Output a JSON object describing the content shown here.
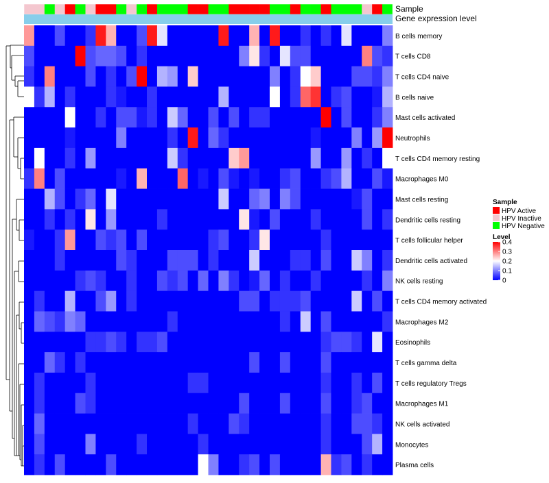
{
  "chart_data": {
    "type": "heatmap",
    "annotation_labels": [
      "Sample",
      "Gene expression level"
    ],
    "sample_groups": [
      "HPV Active",
      "HPV Inactive",
      "HPV Negative"
    ],
    "sample_colors": {
      "HPV Active": "#FF0000",
      "HPV Inactive": "#F4C7CF",
      "HPV Negative": "#00FF00"
    },
    "column_samples": [
      "HPV Inactive",
      "HPV Inactive",
      "HPV Negative",
      "HPV Inactive",
      "HPV Active",
      "HPV Negative",
      "HPV Inactive",
      "HPV Active",
      "HPV Active",
      "HPV Negative",
      "HPV Inactive",
      "HPV Negative",
      "HPV Active",
      "HPV Negative",
      "HPV Negative",
      "HPV Negative",
      "HPV Active",
      "HPV Active",
      "HPV Negative",
      "HPV Negative",
      "HPV Active",
      "HPV Active",
      "HPV Active",
      "HPV Active",
      "HPV Negative",
      "HPV Negative",
      "HPV Active",
      "HPV Negative",
      "HPV Negative",
      "HPV Active",
      "HPV Negative",
      "HPV Negative",
      "HPV Negative",
      "HPV Inactive",
      "HPV Active",
      "HPV Negative"
    ],
    "expression_bar_color": "#87CEEB",
    "rows": [
      "B cells memory",
      "T cells CD8",
      "T cells CD4 naive",
      "B cells naive",
      "Mast cells activated",
      "Neutrophils",
      "T cells CD4 memory resting",
      "Macrophages M0",
      "Mast cells resting",
      "Dendritic cells resting",
      "T cells follicular helper",
      "Dendritic cells activated",
      "NK cells resting",
      "T cells CD4 memory activated",
      "Macrophages M2",
      "Eosinophils",
      "T cells gamma delta",
      "T cells regulatory  Tregs",
      "Macrophages M1",
      "NK cells activated",
      "Monocytes",
      "Plasma cells"
    ],
    "values": [
      [
        0.28,
        0,
        0,
        0.06,
        0,
        0,
        0.04,
        0.38,
        0.26,
        0,
        0,
        0.06,
        0.38,
        0.18,
        0,
        0,
        0,
        0,
        0,
        0.38,
        0,
        0,
        0.26,
        0,
        0.38,
        0,
        0,
        0.04,
        0,
        0.04,
        0,
        0.18,
        0,
        0,
        0,
        0.1
      ],
      [
        0.06,
        0,
        0,
        0,
        0,
        0.4,
        0.06,
        0.08,
        0.08,
        0.06,
        0,
        0.04,
        0,
        0,
        0,
        0,
        0,
        0,
        0,
        0,
        0,
        0.1,
        0.22,
        0.04,
        0,
        0.18,
        0.06,
        0.06,
        0,
        0,
        0,
        0,
        0,
        0.3,
        0.06,
        0.04
      ],
      [
        0.04,
        0,
        0.3,
        0,
        0,
        0,
        0.06,
        0,
        0.04,
        0,
        0.06,
        0.4,
        0,
        0.14,
        0.12,
        0,
        0.24,
        0,
        0,
        0,
        0,
        0,
        0,
        0,
        0.1,
        0,
        0.04,
        0.2,
        0.24,
        0,
        0,
        0,
        0.06,
        0.06,
        0.04,
        0.1
      ],
      [
        0.2,
        0.04,
        0.14,
        0,
        0.04,
        0,
        0,
        0,
        0.04,
        0.02,
        0,
        0,
        0.04,
        0,
        0,
        0,
        0,
        0,
        0,
        0.14,
        0,
        0,
        0,
        0,
        0.2,
        0,
        0.04,
        0.32,
        0.36,
        0,
        0.04,
        0.06,
        0,
        0,
        0.02,
        0.14
      ],
      [
        0,
        0,
        0,
        0,
        0.2,
        0,
        0,
        0.04,
        0,
        0.06,
        0.06,
        0.02,
        0.04,
        0,
        0.16,
        0.08,
        0,
        0,
        0.06,
        0,
        0.06,
        0,
        0.04,
        0.04,
        0,
        0,
        0,
        0,
        0,
        0.4,
        0,
        0.06,
        0,
        0,
        0.04,
        0.1
      ],
      [
        0,
        0,
        0,
        0,
        0.02,
        0,
        0,
        0,
        0,
        0.1,
        0,
        0,
        0,
        0,
        0.04,
        0,
        0.38,
        0,
        0.08,
        0.04,
        0,
        0,
        0,
        0,
        0,
        0,
        0,
        0,
        0.02,
        0,
        0,
        0,
        0.1,
        0,
        0.12,
        0.4
      ],
      [
        0,
        0.2,
        0,
        0,
        0.04,
        0,
        0.12,
        0,
        0,
        0,
        0,
        0,
        0,
        0,
        0.16,
        0.04,
        0,
        0,
        0,
        0,
        0.24,
        0.28,
        0,
        0,
        0,
        0,
        0,
        0,
        0.12,
        0,
        0,
        0.12,
        0,
        0.04,
        0,
        0.2
      ],
      [
        0.04,
        0.3,
        0,
        0.06,
        0,
        0,
        0,
        0,
        0,
        0.02,
        0,
        0.26,
        0,
        0,
        0,
        0.32,
        0,
        0.02,
        0,
        0.06,
        0.02,
        0,
        0.02,
        0,
        0,
        0.04,
        0.06,
        0,
        0,
        0.04,
        0.06,
        0.14,
        0,
        0,
        0.06,
        0.02
      ],
      [
        0,
        0,
        0.14,
        0.06,
        0,
        0.04,
        0.08,
        0,
        0.18,
        0,
        0,
        0,
        0,
        0,
        0,
        0,
        0,
        0,
        0,
        0.16,
        0,
        0,
        0.08,
        0.1,
        0,
        0.1,
        0.06,
        0,
        0,
        0,
        0,
        0,
        0.02,
        0.06,
        0,
        0
      ],
      [
        0,
        0,
        0.04,
        0,
        0.04,
        0,
        0.22,
        0,
        0.12,
        0,
        0,
        0,
        0,
        0.04,
        0,
        0,
        0,
        0,
        0,
        0,
        0,
        0.22,
        0.02,
        0,
        0.06,
        0,
        0,
        0,
        0.04,
        0,
        0,
        0,
        0,
        0.06,
        0,
        0.04
      ],
      [
        0.02,
        0,
        0,
        0.04,
        0.28,
        0,
        0,
        0.06,
        0.04,
        0.06,
        0,
        0.06,
        0,
        0,
        0,
        0,
        0,
        0,
        0.04,
        0.06,
        0,
        0,
        0.04,
        0.22,
        0,
        0,
        0,
        0,
        0,
        0.04,
        0,
        0,
        0,
        0,
        0,
        0
      ],
      [
        0,
        0,
        0,
        0.04,
        0,
        0,
        0,
        0,
        0,
        0.06,
        0.04,
        0,
        0,
        0,
        0.06,
        0.06,
        0.06,
        0,
        0.04,
        0,
        0,
        0,
        0.16,
        0,
        0,
        0,
        0.04,
        0.04,
        0,
        0.06,
        0,
        0,
        0.16,
        0.1,
        0,
        0.04
      ],
      [
        0,
        0,
        0,
        0,
        0,
        0.04,
        0.06,
        0.04,
        0,
        0,
        0.04,
        0,
        0,
        0.06,
        0.04,
        0.06,
        0,
        0.08,
        0,
        0.1,
        0.04,
        0,
        0.02,
        0.08,
        0,
        0.04,
        0,
        0,
        0.04,
        0,
        0,
        0,
        0,
        0.04,
        0,
        0.1
      ],
      [
        0,
        0.04,
        0,
        0,
        0.14,
        0,
        0,
        0.06,
        0.12,
        0,
        0.04,
        0,
        0,
        0,
        0,
        0,
        0,
        0,
        0,
        0,
        0,
        0.06,
        0.06,
        0,
        0.04,
        0.04,
        0.04,
        0.06,
        0,
        0,
        0,
        0,
        0.16,
        0,
        0.06,
        0
      ],
      [
        0,
        0.08,
        0.06,
        0.04,
        0.1,
        0.08,
        0,
        0,
        0,
        0,
        0,
        0,
        0,
        0,
        0.04,
        0,
        0,
        0,
        0,
        0,
        0,
        0,
        0,
        0,
        0,
        0.04,
        0,
        0.16,
        0,
        0.06,
        0,
        0,
        0,
        0,
        0,
        0.04
      ],
      [
        0,
        0,
        0,
        0,
        0,
        0,
        0.04,
        0.04,
        0.06,
        0.04,
        0,
        0.04,
        0.04,
        0.06,
        0,
        0,
        0,
        0,
        0,
        0,
        0,
        0,
        0,
        0,
        0,
        0,
        0,
        0,
        0,
        0.04,
        0.06,
        0.06,
        0.04,
        0,
        0.18,
        0
      ],
      [
        0,
        0,
        0.08,
        0.04,
        0,
        0.04,
        0,
        0,
        0,
        0,
        0,
        0,
        0,
        0,
        0,
        0,
        0,
        0,
        0,
        0,
        0,
        0,
        0.06,
        0,
        0,
        0.06,
        0,
        0,
        0,
        0.06,
        0,
        0,
        0,
        0,
        0,
        0
      ],
      [
        0,
        0.04,
        0,
        0,
        0,
        0,
        0.04,
        0,
        0,
        0,
        0,
        0,
        0,
        0,
        0,
        0,
        0.04,
        0.04,
        0,
        0,
        0,
        0,
        0,
        0,
        0,
        0,
        0,
        0,
        0,
        0.04,
        0,
        0,
        0.04,
        0,
        0.06,
        0
      ],
      [
        0,
        0.04,
        0,
        0,
        0,
        0.06,
        0.04,
        0,
        0,
        0,
        0,
        0,
        0,
        0,
        0,
        0,
        0,
        0,
        0,
        0,
        0,
        0.06,
        0,
        0,
        0,
        0.06,
        0,
        0,
        0,
        0.06,
        0,
        0,
        0.04,
        0.06,
        0,
        0
      ],
      [
        0,
        0.08,
        0,
        0,
        0,
        0,
        0,
        0,
        0,
        0,
        0,
        0,
        0,
        0,
        0,
        0,
        0.04,
        0,
        0,
        0,
        0.06,
        0.04,
        0,
        0,
        0,
        0,
        0,
        0,
        0,
        0.04,
        0,
        0,
        0.06,
        0.06,
        0.04,
        0
      ],
      [
        0,
        0.06,
        0,
        0,
        0,
        0,
        0.1,
        0,
        0,
        0,
        0,
        0.04,
        0,
        0,
        0,
        0,
        0,
        0.04,
        0,
        0,
        0,
        0,
        0,
        0,
        0,
        0,
        0,
        0,
        0,
        0.04,
        0,
        0,
        0,
        0.06,
        0.14,
        0
      ],
      [
        0,
        0.04,
        0,
        0.06,
        0,
        0,
        0,
        0,
        0.06,
        0,
        0,
        0,
        0,
        0,
        0,
        0,
        0,
        0.2,
        0.1,
        0,
        0,
        0.04,
        0.06,
        0,
        0.06,
        0,
        0,
        0,
        0,
        0.26,
        0.04,
        0.06,
        0,
        0.04,
        0,
        0
      ]
    ],
    "legend": {
      "sample_title": "Sample",
      "sample_entries": [
        "HPV Active",
        "HPV Inactive",
        "HPV Negative"
      ],
      "level_title": "Level",
      "level_ticks": [
        "0.4",
        "0.3",
        "0.2",
        "0.1",
        "0"
      ],
      "level_tick_values": [
        0.4,
        0.3,
        0.2,
        0.1,
        0
      ],
      "level_range": [
        0,
        0.4
      ],
      "color_scale": [
        "#0000FF",
        "#FFFFFF",
        "#FF0000"
      ],
      "placement": "right"
    }
  }
}
